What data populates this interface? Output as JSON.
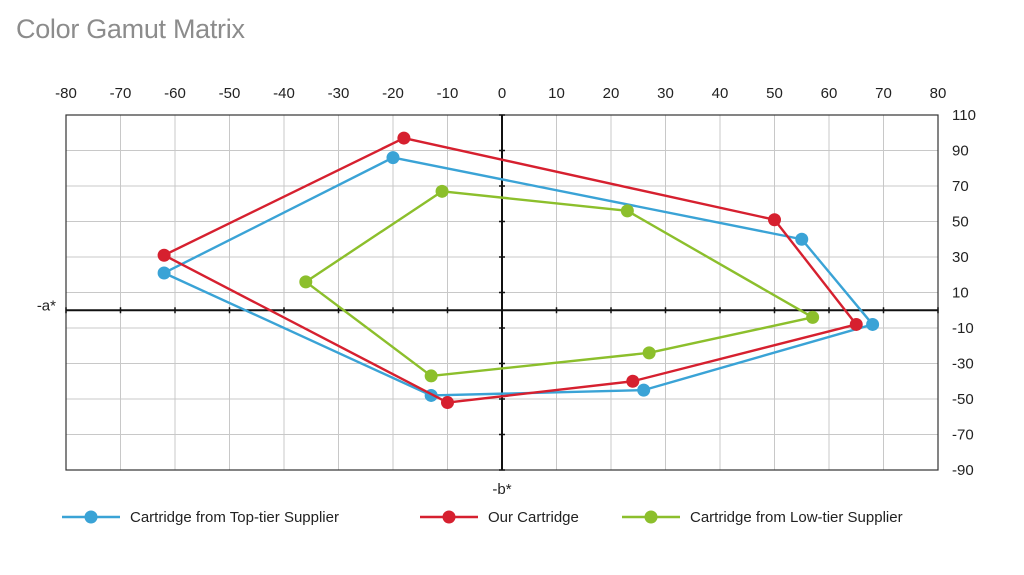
{
  "chart_data": {
    "type": "line",
    "title": "Color Gamut Matrix",
    "xlabel": "-b*",
    "ylabel": "-a*",
    "xlim": [
      -80,
      80
    ],
    "ylim": [
      -90,
      110
    ],
    "x_ticks": [
      -80,
      -70,
      -60,
      -50,
      -40,
      -30,
      -20,
      -10,
      0,
      10,
      20,
      30,
      40,
      50,
      60,
      70,
      80
    ],
    "y_ticks": [
      110,
      90,
      70,
      50,
      30,
      10,
      -10,
      -30,
      -50,
      -70,
      -90
    ],
    "grid": true,
    "legend_position": "bottom",
    "series": [
      {
        "name": "Cartridge from Top-tier Supplier",
        "color": "#3aa3d6",
        "closed": true,
        "points": [
          [
            -20,
            86
          ],
          [
            55,
            40
          ],
          [
            68,
            -8
          ],
          [
            26,
            -45
          ],
          [
            -13,
            -48
          ],
          [
            -62,
            21
          ]
        ]
      },
      {
        "name": "Our Cartridge",
        "color": "#d6202f",
        "closed": true,
        "points": [
          [
            -18,
            97
          ],
          [
            50,
            51
          ],
          [
            65,
            -8
          ],
          [
            24,
            -40
          ],
          [
            -10,
            -52
          ],
          [
            -62,
            31
          ]
        ]
      },
      {
        "name": "Cartridge from Low-tier Supplier",
        "color": "#8cbf2c",
        "closed": true,
        "points": [
          [
            -11,
            67
          ],
          [
            23,
            56
          ],
          [
            57,
            -4
          ],
          [
            27,
            -24
          ],
          [
            -13,
            -37
          ],
          [
            -36,
            16
          ]
        ]
      }
    ]
  }
}
